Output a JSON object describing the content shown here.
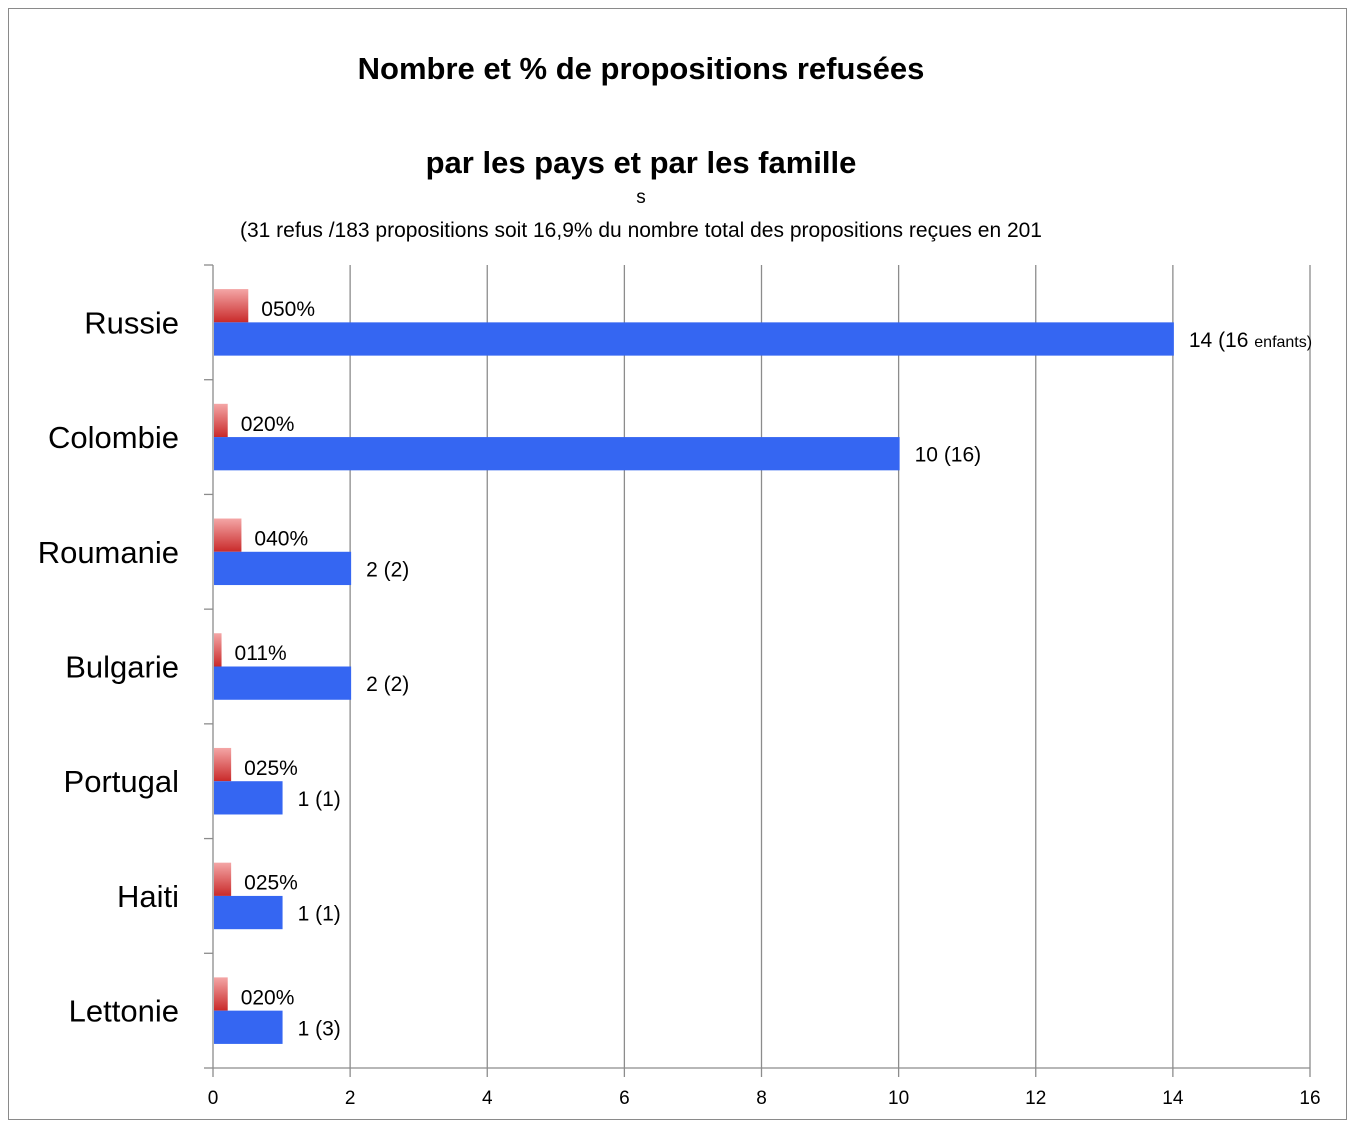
{
  "chart_data": {
    "type": "bar",
    "orientation": "horizontal",
    "title": "Nombre et % de propositions refusées",
    "title_line2": "par les pays et par les famille",
    "title_line3": "s",
    "subtitle": "(31 refus /183 propositions soit 16,9% du nombre total des propositions reçues en 201",
    "categories": [
      "Russie",
      "Colombie",
      "Roumanie",
      "Bulgarie",
      "Portugal",
      "Haiti",
      "Lettonie"
    ],
    "series": [
      {
        "values": [
          0.5,
          0.2,
          0.4,
          0.11,
          0.25,
          0.25,
          0.2
        ],
        "data_labels": [
          "050%",
          "020%",
          "040%",
          "011%",
          "025%",
          "025%",
          "020%"
        ],
        "color_top": "#f4a6a6",
        "color_bottom": "#c92a2a"
      },
      {
        "values": [
          14,
          10,
          2,
          2,
          1,
          1,
          1
        ],
        "data_labels": [
          "14 (16 ",
          "10 (16)",
          "2 (2)",
          "2 (2)",
          "1 (1)",
          "1 (1)",
          "1 (3)"
        ],
        "data_label_suffix_small": [
          "enfants)",
          "",
          "",
          "",
          "",
          "",
          ""
        ],
        "color": "#3566f2"
      }
    ],
    "xlim": [
      0,
      16
    ],
    "xticks": [
      "0",
      "2",
      "4",
      "6",
      "8",
      "10",
      "12",
      "14",
      "16"
    ],
    "grid": true
  }
}
